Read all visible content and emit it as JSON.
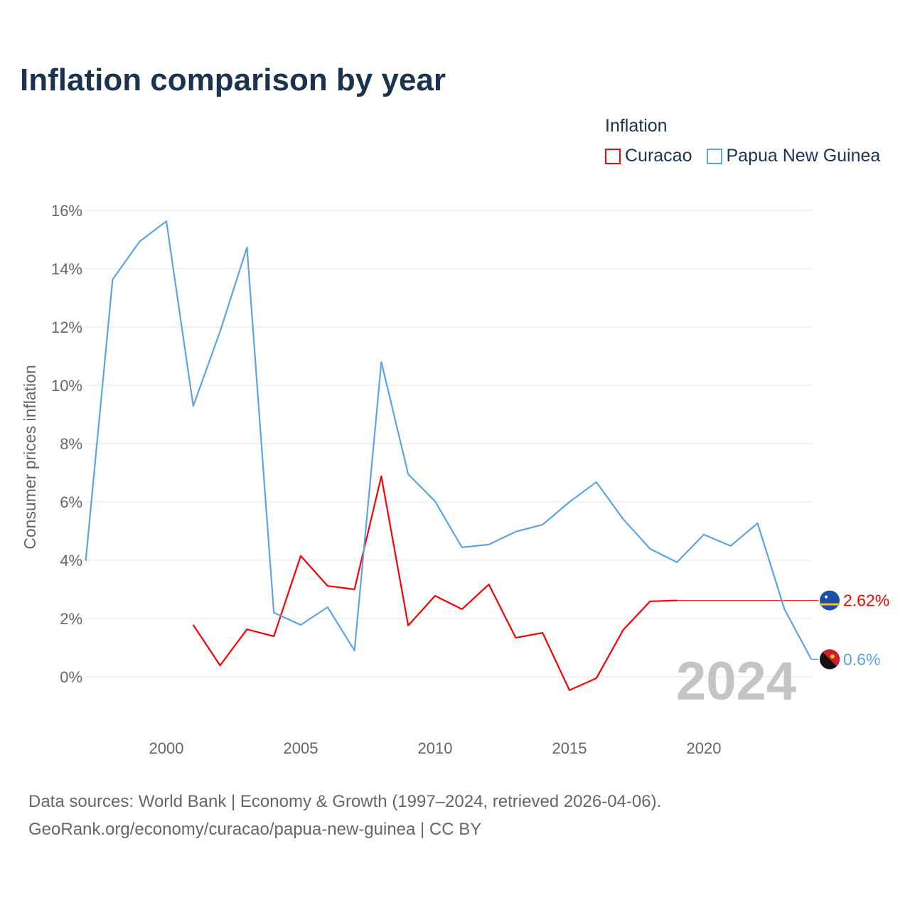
{
  "title": "Inflation comparison by year",
  "legend": {
    "title": "Inflation",
    "items": [
      "Curacao",
      "Papua New Guinea"
    ]
  },
  "source": [
    "Data sources: World Bank | Economy & Growth (1997–2024, retrieved 2026-04-06).",
    "GeoRank.org/economy/curacao/papua-new-guinea | CC BY"
  ],
  "colors": {
    "curacao": "#ff0000",
    "png": "#5aa5e8"
  },
  "chart_data": {
    "type": "line",
    "title": "Inflation comparison by year",
    "xlabel": "",
    "ylabel": "Consumer prices inflation",
    "xlim": [
      1997,
      2024
    ],
    "ylim": [
      -1.5,
      16.5
    ],
    "yticks": [
      0,
      2,
      4,
      6,
      8,
      10,
      12,
      14,
      16
    ],
    "ytick_labels": [
      "0%",
      "2%",
      "4%",
      "6%",
      "8%",
      "10%",
      "12%",
      "14%",
      "16%"
    ],
    "xticks": [
      2000,
      2005,
      2010,
      2015,
      2020
    ],
    "xtick_labels": [
      "2000",
      "2005",
      "2010",
      "2015",
      "2020"
    ],
    "year_label": "2024",
    "series": [
      {
        "name": "Curacao",
        "color": "#ff0000",
        "end_label": "2.62%",
        "x": [
          2001,
          2002,
          2003,
          2004,
          2005,
          2006,
          2007,
          2008,
          2009,
          2010,
          2011,
          2012,
          2013,
          2014,
          2015,
          2016,
          2017,
          2018,
          2019
        ],
        "y": [
          1.78,
          0.39,
          1.63,
          1.39,
          4.15,
          3.12,
          3.0,
          6.88,
          1.76,
          2.78,
          2.32,
          3.17,
          1.34,
          1.51,
          -0.46,
          -0.05,
          1.61,
          2.59,
          2.62
        ]
      },
      {
        "name": "Papua New Guinea",
        "color": "#5aa5e8",
        "end_label": "0.6%",
        "x": [
          1997,
          1998,
          1999,
          2000,
          2001,
          2002,
          2003,
          2004,
          2005,
          2006,
          2007,
          2008,
          2009,
          2010,
          2011,
          2012,
          2013,
          2014,
          2015,
          2016,
          2017,
          2018,
          2019,
          2020,
          2021,
          2022,
          2023,
          2024
        ],
        "y": [
          3.98,
          13.63,
          14.93,
          15.63,
          9.29,
          11.85,
          14.73,
          2.2,
          1.78,
          2.39,
          0.9,
          10.8,
          6.95,
          6.02,
          4.44,
          4.54,
          4.98,
          5.22,
          6.0,
          6.68,
          5.41,
          4.39,
          3.93,
          4.88,
          4.49,
          5.27,
          2.32,
          0.6
        ]
      }
    ]
  }
}
